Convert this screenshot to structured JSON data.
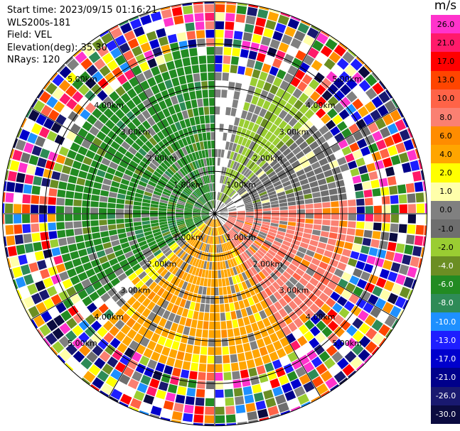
{
  "header": {
    "start_time": "Start time: 2023/09/15 01:16:21",
    "instrument": "WLS200s-181",
    "field": "Field: VEL",
    "elevation": "Elevation(deg): 35.30",
    "nrays": "NRays: 120"
  },
  "colorbar": {
    "unit": "m/s",
    "bins": [
      {
        "label": "26.0",
        "color": "#ff33cc"
      },
      {
        "label": "21.0",
        "color": "#ff1a6a"
      },
      {
        "label": "17.0",
        "color": "#ff0000"
      },
      {
        "label": "13.0",
        "color": "#ff4500"
      },
      {
        "label": "10.0",
        "color": "#ff6347"
      },
      {
        "label": "8.0",
        "color": "#fa8072"
      },
      {
        "label": "6.0",
        "color": "#ff8c00"
      },
      {
        "label": "4.0",
        "color": "#ffa500"
      },
      {
        "label": "2.0",
        "color": "#ffff00"
      },
      {
        "label": "1.0",
        "color": "#ffffaa"
      },
      {
        "label": "0.0",
        "color": "#808080"
      },
      {
        "label": "-1.0",
        "color": "#6e6e6e"
      },
      {
        "label": "-2.0",
        "color": "#9acd32"
      },
      {
        "label": "-4.0",
        "color": "#6b8e23"
      },
      {
        "label": "-6.0",
        "color": "#228b22"
      },
      {
        "label": "-8.0",
        "color": "#2e8b57"
      },
      {
        "label": "-10.0",
        "color": "#1e90ff"
      },
      {
        "label": "-13.0",
        "color": "#1e1eff"
      },
      {
        "label": "-17.0",
        "color": "#0000cd"
      },
      {
        "label": "-21.0",
        "color": "#00008b"
      },
      {
        "label": "-26.0",
        "color": "#191970"
      },
      {
        "label": "-30.0",
        "color": "#0b0b40"
      }
    ]
  },
  "chart_data": {
    "type": "heatmap",
    "projection": "polar-ppi",
    "title": "",
    "nrays": 120,
    "max_range_km": 5.0,
    "range_rings_km": [
      1,
      2,
      3,
      4,
      5
    ],
    "ring_labels": [
      "1.00km",
      "2.00km",
      "3.00km",
      "4.00km",
      "5.00km"
    ],
    "spokes_deg": [
      0,
      30,
      60,
      90,
      120,
      150,
      180,
      210,
      240,
      270,
      300,
      330
    ],
    "sectors": [
      {
        "az_from": 235,
        "az_to": 360,
        "range_km": [
          0.2,
          3.8
        ],
        "value": -6.0
      },
      {
        "az_from": 15,
        "az_to": 45,
        "range_km": [
          0.4,
          3.5
        ],
        "value": -2.0
      },
      {
        "az_from": 45,
        "az_to": 85,
        "range_km": [
          0.8,
          3.2
        ],
        "value": -1.0
      },
      {
        "az_from": 85,
        "az_to": 150,
        "range_km": [
          0.3,
          3.4
        ],
        "value": 8.0
      },
      {
        "az_from": 150,
        "az_to": 225,
        "range_km": [
          0.2,
          3.8
        ],
        "value": 4.0
      },
      {
        "az_from": 225,
        "az_to": 260,
        "range_km": [
          0.3,
          2.6
        ],
        "value": 2.0
      }
    ],
    "far_field": "noise beyond ~3.5–4.0 km"
  }
}
